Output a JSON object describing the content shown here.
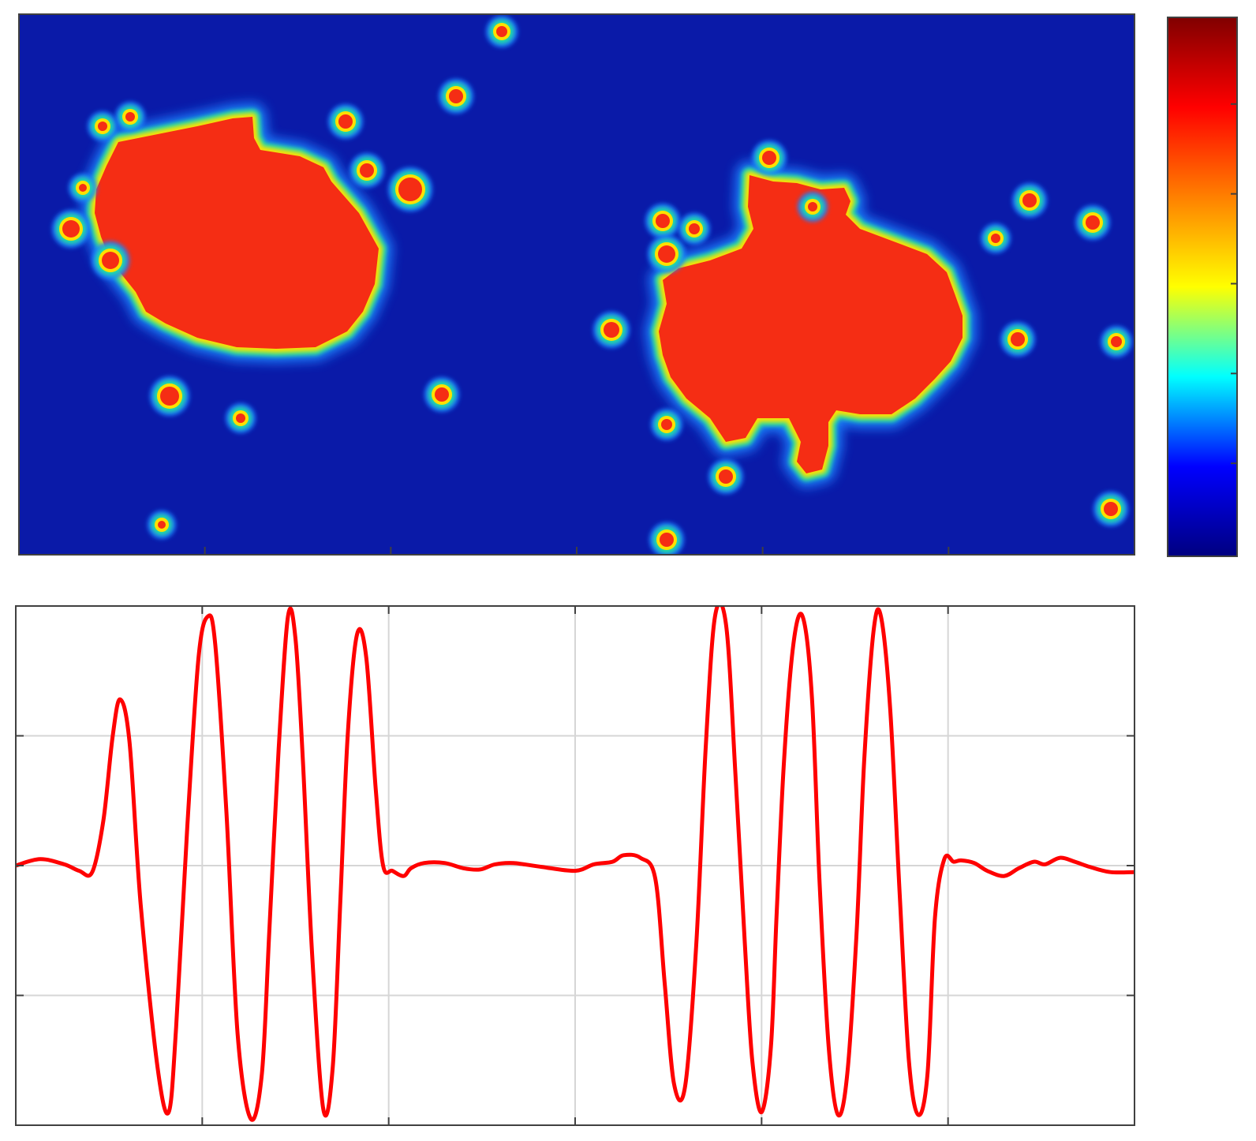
{
  "chart_data": [
    {
      "type": "heatmap",
      "title": "",
      "xlabel": "",
      "ylabel": "",
      "colormap": "jet",
      "colormap_stops": [
        "#000080",
        "#0000ff",
        "#00ffff",
        "#ffff00",
        "#ff8000",
        "#ff0000",
        "#800000"
      ],
      "background_color": "#0a1aa8",
      "blob_color": "#f52d14",
      "edge_colors": [
        "#ffe000",
        "#22e0a0",
        "#1a80ff"
      ],
      "colorbar": true,
      "x_ticks": 6,
      "y_ticks_on_colorbar": 6,
      "regions": [
        {
          "name": "left-cluster",
          "level": "high"
        },
        {
          "name": "right-cluster",
          "level": "high"
        }
      ]
    },
    {
      "type": "line",
      "title": "",
      "xlabel": "",
      "ylabel": "",
      "line_color": "#ff0000",
      "grid": true,
      "xlim": [
        0,
        6
      ],
      "ylim": [
        -2,
        2
      ],
      "x_grid": [
        1,
        2,
        3,
        4,
        5
      ],
      "y_grid": [
        -1,
        0,
        1
      ],
      "series": [
        {
          "x": [
            0.0,
            0.13,
            0.26,
            0.34,
            0.41,
            0.47,
            0.52,
            0.56,
            0.61,
            0.67,
            0.76,
            0.82,
            0.86,
            0.92,
            0.98,
            1.03,
            1.07,
            1.13,
            1.19,
            1.26,
            1.32,
            1.36,
            1.41,
            1.46,
            1.5,
            1.54,
            1.59,
            1.65,
            1.7,
            1.74,
            1.78,
            1.83,
            1.88,
            1.93,
            1.97,
            2.02,
            2.08,
            2.12,
            2.19,
            2.3,
            2.4,
            2.49,
            2.57,
            2.67,
            2.82,
            3.0,
            3.1,
            3.2,
            3.26,
            3.35,
            3.43,
            3.48,
            3.53,
            3.59,
            3.65,
            3.7,
            3.75,
            3.81,
            3.86,
            3.91,
            3.95,
            4.0,
            4.05,
            4.08,
            4.12,
            4.17,
            4.22,
            4.27,
            4.31,
            4.36,
            4.41,
            4.46,
            4.51,
            4.55,
            4.6,
            4.64,
            4.69,
            4.74,
            4.79,
            4.84,
            4.89,
            4.93,
            4.98,
            5.03,
            5.07,
            5.14,
            5.21,
            5.3,
            5.38,
            5.46,
            5.52,
            5.6,
            5.68,
            5.76,
            5.87,
            6.0
          ],
          "y": [
            0.0,
            0.05,
            0.01,
            -0.04,
            -0.05,
            0.35,
            1.0,
            1.28,
            0.95,
            -0.3,
            -1.55,
            -1.9,
            -1.25,
            0.3,
            1.6,
            1.92,
            1.7,
            0.4,
            -1.3,
            -1.95,
            -1.6,
            -0.5,
            0.9,
            1.92,
            1.75,
            0.8,
            -0.7,
            -1.88,
            -1.55,
            -0.3,
            1.0,
            1.78,
            1.6,
            0.6,
            0.0,
            -0.04,
            -0.08,
            -0.02,
            0.02,
            0.02,
            -0.02,
            -0.03,
            0.01,
            0.02,
            -0.01,
            -0.04,
            0.01,
            0.03,
            0.08,
            0.06,
            -0.1,
            -0.9,
            -1.68,
            -1.7,
            -0.6,
            0.9,
            1.92,
            1.85,
            0.7,
            -0.6,
            -1.5,
            -1.9,
            -1.4,
            -0.4,
            0.8,
            1.7,
            1.92,
            1.3,
            -0.1,
            -1.4,
            -1.92,
            -1.6,
            -0.5,
            0.8,
            1.8,
            1.92,
            1.2,
            -0.2,
            -1.5,
            -1.92,
            -1.6,
            -0.4,
            0.05,
            0.03,
            0.04,
            0.02,
            -0.04,
            -0.08,
            -0.02,
            0.03,
            0.01,
            0.06,
            0.03,
            -0.01,
            -0.05,
            -0.05
          ]
        }
      ]
    }
  ]
}
